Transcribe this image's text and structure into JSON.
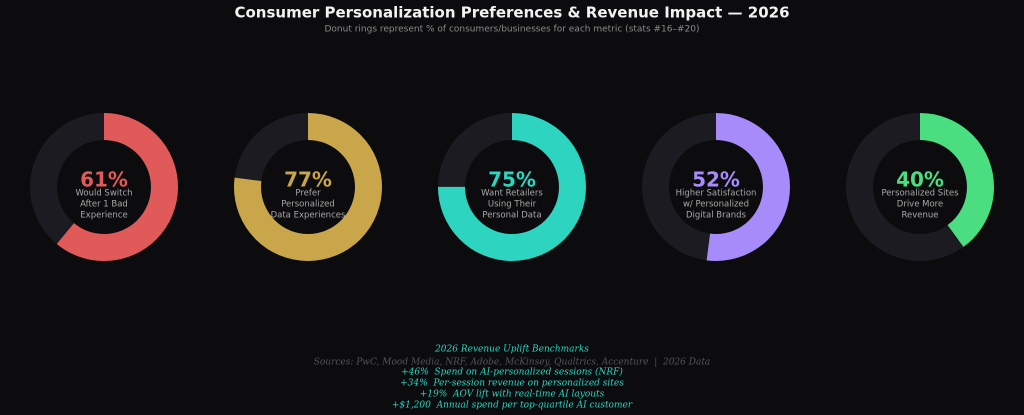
{
  "title": "Consumer Personalization Preferences & Revenue Impact — 2026",
  "subtitle": "Donut rings represent % of consumers/businesses for each metric (stats #16–#20)",
  "chart_data": [
    {
      "type": "donut",
      "values": [
        61
      ],
      "value_labels": [
        "61%"
      ],
      "label": [
        "Would Switch",
        "After 1 Bad",
        "Experience"
      ],
      "color": "#e05a5a",
      "ylim": [
        0,
        100
      ]
    },
    {
      "type": "donut",
      "values": [
        77
      ],
      "value_labels": [
        "77%"
      ],
      "label": [
        "Prefer",
        "Personalized",
        "Data Experiences"
      ],
      "color": "#c9a64a",
      "ylim": [
        0,
        100
      ]
    },
    {
      "type": "donut",
      "values": [
        75
      ],
      "value_labels": [
        "75%"
      ],
      "label": [
        "Want Retailers",
        "Using Their",
        "Personal Data"
      ],
      "color": "#2dd4bf",
      "ylim": [
        0,
        100
      ]
    },
    {
      "type": "donut",
      "values": [
        52
      ],
      "value_labels": [
        "52%"
      ],
      "label": [
        "Higher Satisfaction",
        "w/ Personalized",
        "Digital Brands"
      ],
      "color": "#a78bfa",
      "ylim": [
        0,
        100
      ]
    },
    {
      "type": "donut",
      "values": [
        40
      ],
      "value_labels": [
        "40%"
      ],
      "label": [
        "Personalized Sites",
        "Drive More",
        "Revenue"
      ],
      "color": "#4ade80",
      "ylim": [
        0,
        100
      ]
    }
  ],
  "footer": {
    "heading": "2026 Revenue Uplift Benchmarks",
    "sources": "Sources: PwC, Mood Media, NRF, Adobe, McKinsey, Qualtrics, Accenture  |  2026 Data",
    "lines": [
      "+46%  Spend on AI-personalized sessions (NRF)",
      "+34%  Per-session revenue on personalized sites",
      "+19%  AOV lift with real-time AI layouts",
      "+$1,200  Annual spend per top-quartile AI customer"
    ]
  }
}
